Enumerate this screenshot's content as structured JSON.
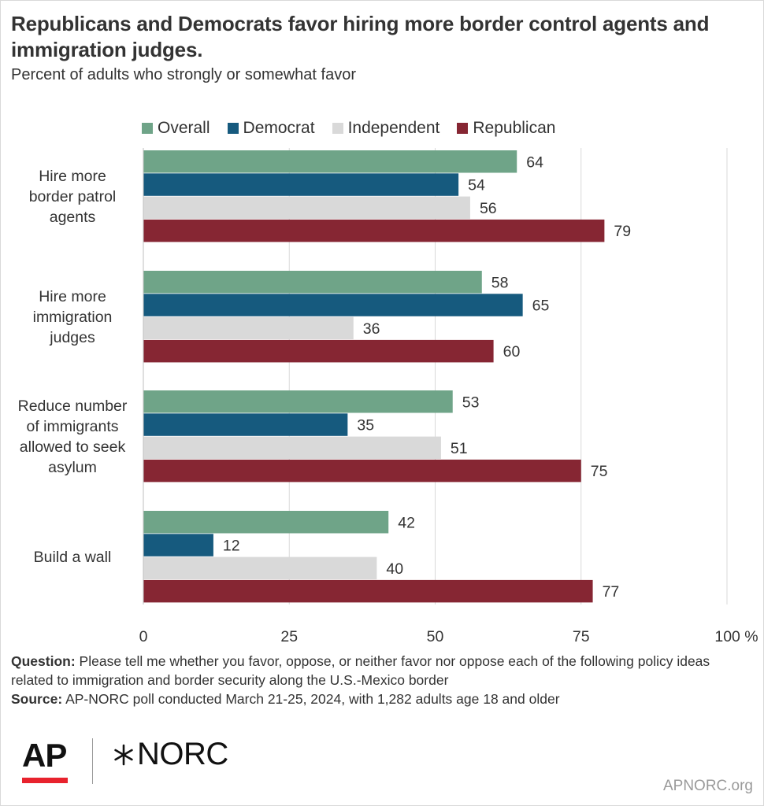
{
  "title": "Republicans and Democrats favor hiring more border control agents and immigration judges.",
  "subtitle": "Percent of adults who strongly or somewhat favor",
  "legend": [
    {
      "name": "Overall",
      "color": "#6fa488"
    },
    {
      "name": "Democrat",
      "color": "#165a7e"
    },
    {
      "name": "Independent",
      "color": "#d9d9d9"
    },
    {
      "name": "Republican",
      "color": "#862633"
    }
  ],
  "chart_data": {
    "type": "bar",
    "orientation": "horizontal",
    "categories": [
      [
        "Hire more",
        "border patrol",
        "agents"
      ],
      [
        "Hire more",
        "immigration",
        "judges"
      ],
      [
        "Reduce number",
        "of immigrants",
        "allowed to seek",
        "asylum"
      ],
      [
        "Build a wall"
      ]
    ],
    "series": [
      {
        "name": "Overall",
        "color": "#6fa488",
        "values": [
          64,
          58,
          53,
          42
        ]
      },
      {
        "name": "Democrat",
        "color": "#165a7e",
        "values": [
          54,
          65,
          35,
          12
        ]
      },
      {
        "name": "Independent",
        "color": "#d9d9d9",
        "values": [
          56,
          36,
          51,
          40
        ]
      },
      {
        "name": "Republican",
        "color": "#862633",
        "values": [
          79,
          60,
          75,
          77
        ]
      }
    ],
    "xlim": [
      0,
      100
    ],
    "xticks": [
      "0",
      "25",
      "50",
      "75",
      "100 %"
    ],
    "xtick_values": [
      0,
      25,
      50,
      75,
      100
    ],
    "grid": true,
    "legend_position": "top"
  },
  "notes": {
    "question_label": "Question:",
    "question_text": "Please tell me whether you favor, oppose, or neither favor nor oppose each of the following policy ideas related to immigration and border security along the U.S.-Mexico border",
    "source_label": "Source:",
    "source_text": "AP-NORC poll conducted March 21-25, 2024, with 1,282 adults age 18 and older"
  },
  "logos": {
    "ap": "AP",
    "norc": "NORC"
  },
  "site": "APNORC.org"
}
